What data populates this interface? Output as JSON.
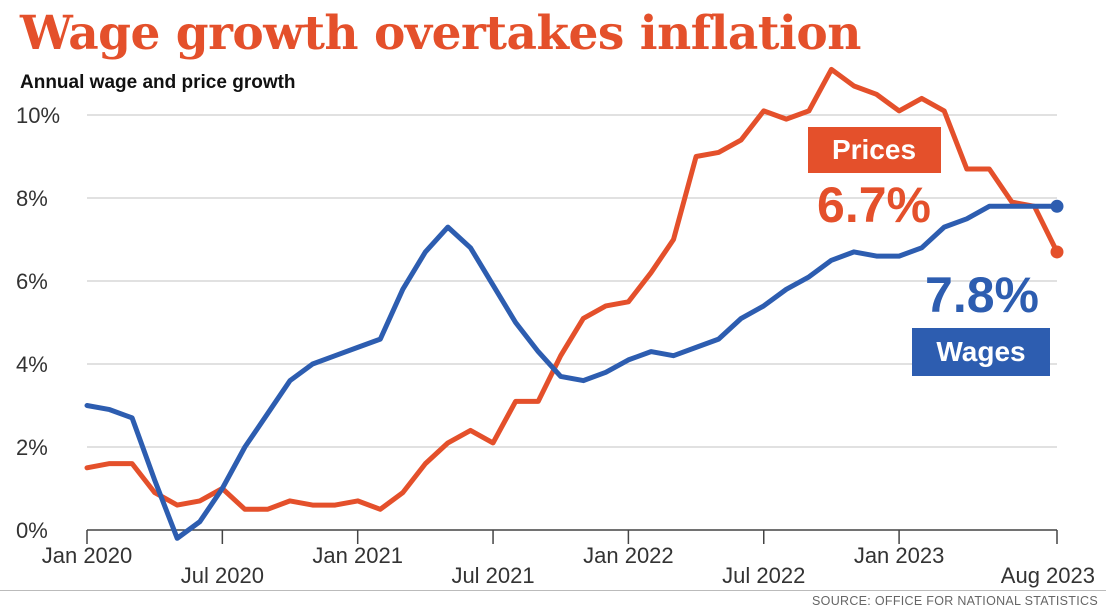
{
  "chart_data": {
    "type": "line",
    "title": "Wage growth overtakes inflation",
    "subtitle": "Annual wage and price growth",
    "source": "SOURCE: OFFICE FOR NATIONAL STATISTICS",
    "ylim": [
      0,
      10
    ],
    "yticks": [
      0,
      2,
      4,
      6,
      8,
      10
    ],
    "ytick_labels": [
      "0%",
      "2%",
      "4%",
      "6%",
      "8%",
      "10%"
    ],
    "xlim": [
      "2020-01",
      "2023-08"
    ],
    "xtick_labels": [
      {
        "label": "Jan 2020",
        "date": "2020-01",
        "row": "top"
      },
      {
        "label": "Jul 2020",
        "date": "2020-07",
        "row": "bottom"
      },
      {
        "label": "Jan 2021",
        "date": "2021-01",
        "row": "top"
      },
      {
        "label": "Jul 2021",
        "date": "2021-07",
        "row": "bottom"
      },
      {
        "label": "Jan 2022",
        "date": "2022-01",
        "row": "top"
      },
      {
        "label": "Jul 2022",
        "date": "2022-07",
        "row": "bottom"
      },
      {
        "label": "Jan 2023",
        "date": "2023-01",
        "row": "top"
      },
      {
        "label": "Aug 2023",
        "date": "2023-08",
        "row": "bottom"
      }
    ],
    "grid": true,
    "series": [
      {
        "name": "Prices",
        "color": "#e4502b",
        "label_value": "6.7%",
        "label_box_color": "#e4502b",
        "x": [
          "2020-01",
          "2020-02",
          "2020-03",
          "2020-04",
          "2020-05",
          "2020-06",
          "2020-07",
          "2020-08",
          "2020-09",
          "2020-10",
          "2020-11",
          "2020-12",
          "2021-01",
          "2021-02",
          "2021-03",
          "2021-04",
          "2021-05",
          "2021-06",
          "2021-07",
          "2021-08",
          "2021-09",
          "2021-10",
          "2021-11",
          "2021-12",
          "2022-01",
          "2022-02",
          "2022-03",
          "2022-04",
          "2022-05",
          "2022-06",
          "2022-07",
          "2022-08",
          "2022-09",
          "2022-10",
          "2022-11",
          "2022-12",
          "2023-01",
          "2023-02",
          "2023-03",
          "2023-04",
          "2023-05",
          "2023-06",
          "2023-07",
          "2023-08"
        ],
        "values": [
          1.5,
          1.6,
          1.6,
          0.9,
          0.6,
          0.7,
          1.0,
          0.5,
          0.5,
          0.7,
          0.6,
          0.6,
          0.7,
          0.5,
          0.9,
          1.6,
          2.1,
          2.4,
          2.1,
          3.1,
          3.1,
          4.2,
          5.1,
          5.4,
          5.5,
          6.2,
          7.0,
          9.0,
          9.1,
          9.4,
          10.1,
          9.9,
          10.1,
          11.1,
          10.7,
          10.5,
          10.1,
          10.4,
          10.1,
          8.7,
          8.7,
          7.9,
          7.8,
          6.7
        ]
      },
      {
        "name": "Wages",
        "color": "#2d5db0",
        "label_value": "7.8%",
        "label_box_color": "#2d5db0",
        "x": [
          "2020-01",
          "2020-02",
          "2020-03",
          "2020-04",
          "2020-05",
          "2020-06",
          "2020-07",
          "2020-08",
          "2020-09",
          "2020-10",
          "2020-11",
          "2020-12",
          "2021-01",
          "2021-02",
          "2021-03",
          "2021-04",
          "2021-05",
          "2021-06",
          "2021-07",
          "2021-08",
          "2021-09",
          "2021-10",
          "2021-11",
          "2021-12",
          "2022-01",
          "2022-02",
          "2022-03",
          "2022-04",
          "2022-05",
          "2022-06",
          "2022-07",
          "2022-08",
          "2022-09",
          "2022-10",
          "2022-11",
          "2022-12",
          "2023-01",
          "2023-02",
          "2023-03",
          "2023-04",
          "2023-05",
          "2023-06",
          "2023-07",
          "2023-08"
        ],
        "values": [
          3.0,
          2.9,
          2.7,
          1.2,
          -0.2,
          0.2,
          1.0,
          2.0,
          2.8,
          3.6,
          4.0,
          4.2,
          4.4,
          4.6,
          5.8,
          6.7,
          7.3,
          6.8,
          5.9,
          5.0,
          4.3,
          3.7,
          3.6,
          3.8,
          4.1,
          4.3,
          4.2,
          4.4,
          4.6,
          5.1,
          5.4,
          5.8,
          6.1,
          6.5,
          6.7,
          6.6,
          6.6,
          6.8,
          7.3,
          7.5,
          7.8,
          7.8,
          7.8,
          7.8
        ]
      }
    ]
  }
}
